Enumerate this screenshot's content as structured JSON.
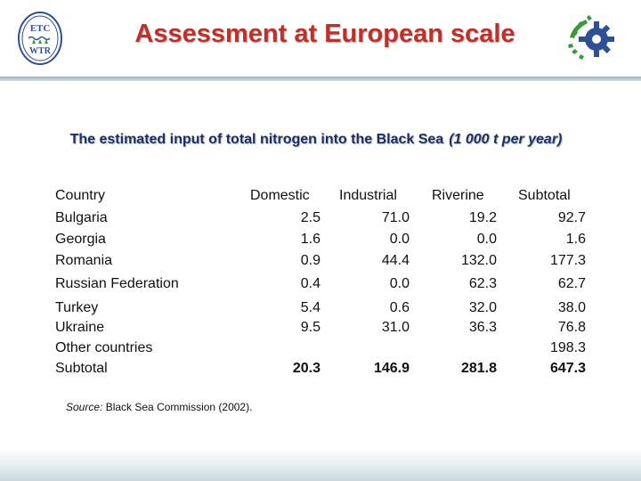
{
  "header": {
    "title": "Assessment at European scale",
    "logo_left_text_top": "ETC",
    "logo_left_text_bottom": "WTR",
    "logo_left_icon": "etc-wtr-logo-icon",
    "logo_right_icon": "green-gear-logo-icon"
  },
  "subtitle": {
    "text": "The estimated input of total nitrogen into the Black Sea",
    "unit": "(1 000 t per year)"
  },
  "table": {
    "columns": [
      "Country",
      "Domestic",
      "Industrial",
      "Riverine",
      "Subtotal"
    ],
    "rows": [
      {
        "country": "Bulgaria",
        "domestic": "2.5",
        "industrial": "71.0",
        "riverine": "19.2",
        "subtotal": "92.7"
      },
      {
        "country": "Georgia",
        "domestic": "1.6",
        "industrial": "0.0",
        "riverine": "0.0",
        "subtotal": "1.6"
      },
      {
        "country": "Romania",
        "domestic": "0.9",
        "industrial": "44.4",
        "riverine": "132.0",
        "subtotal": "177.3"
      },
      {
        "country": "Russian Federation",
        "domestic": "0.4",
        "industrial": "0.0",
        "riverine": "62.3",
        "subtotal": "62.7"
      },
      {
        "country": "Turkey",
        "domestic": "5.4",
        "industrial": "0.6",
        "riverine": "32.0",
        "subtotal": "38.0"
      },
      {
        "country": "Ukraine",
        "domestic": "9.5",
        "industrial": "31.0",
        "riverine": "36.3",
        "subtotal": "76.8"
      },
      {
        "country": "Other countries",
        "domestic": "",
        "industrial": "",
        "riverine": "",
        "subtotal": "198.3"
      },
      {
        "country": "Subtotal",
        "domestic": "20.3",
        "industrial": "146.9",
        "riverine": "281.8",
        "subtotal": "647.3"
      }
    ]
  },
  "source": {
    "label": "Source:",
    "text": "Black Sea Commission (2002)."
  },
  "colors": {
    "title": "#c0302a",
    "subtitle": "#1a2f66",
    "logo_blue": "#2f4f96",
    "logo_green": "#3a9a3a"
  }
}
